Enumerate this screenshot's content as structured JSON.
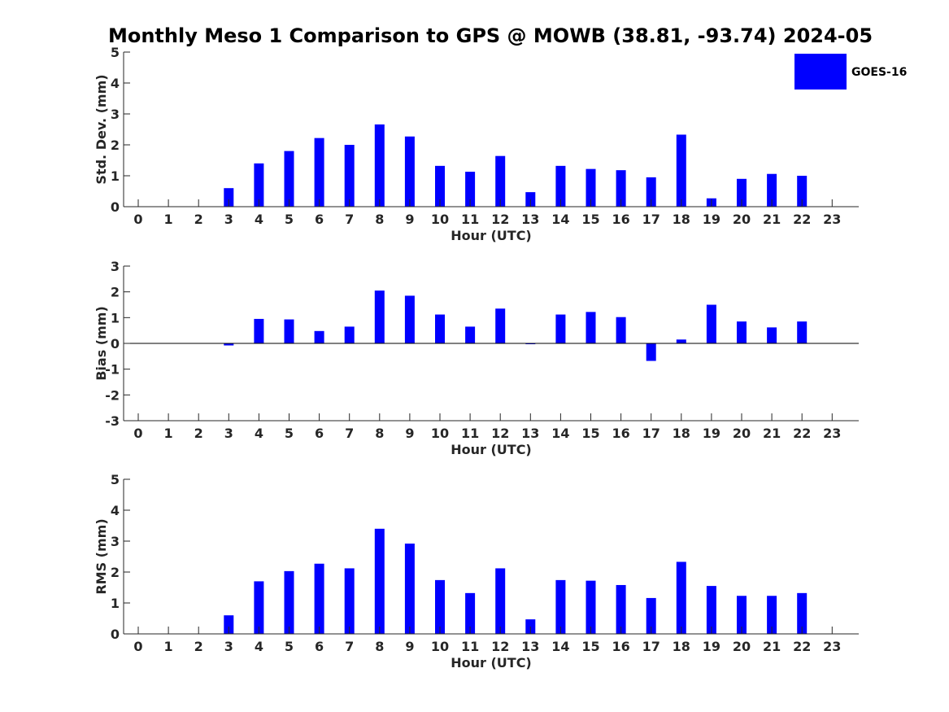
{
  "chart_data": {
    "title": "Monthly Meso 1 Comparison to GPS @ MOWB (38.81, -93.74) 2024-05",
    "type": "bar",
    "categories": [
      0,
      1,
      2,
      3,
      4,
      5,
      6,
      7,
      8,
      9,
      10,
      11,
      12,
      13,
      14,
      15,
      16,
      17,
      18,
      19,
      20,
      21,
      22,
      23
    ],
    "legend": {
      "entries": [
        "GOES-16"
      ],
      "position": "top-right"
    },
    "colors": {
      "bar": "#0000ff",
      "axis": "#262626",
      "title": "#000000"
    },
    "grid": false,
    "panels": [
      {
        "ylabel": "Std. Dev. (mm)",
        "xlabel": "Hour (UTC)",
        "ylim": [
          0,
          5
        ],
        "yticks": [
          0,
          1,
          2,
          3,
          4,
          5
        ],
        "series": [
          {
            "name": "GOES-16",
            "values": [
              null,
              null,
              null,
              0.6,
              1.4,
              1.8,
              2.22,
              2.0,
              2.66,
              2.27,
              1.32,
              1.13,
              1.64,
              0.47,
              1.32,
              1.22,
              1.18,
              0.95,
              2.33,
              0.27,
              0.9,
              1.06,
              1.0,
              null
            ]
          }
        ]
      },
      {
        "ylabel": "Bias (mm)",
        "xlabel": "Hour (UTC)",
        "ylim": [
          -3,
          3
        ],
        "yticks": [
          -3,
          -2,
          -1,
          0,
          1,
          2,
          3
        ],
        "series": [
          {
            "name": "GOES-16",
            "values": [
              null,
              null,
              null,
              -0.08,
              0.95,
              0.93,
              0.48,
              0.65,
              2.05,
              1.85,
              1.12,
              0.65,
              1.35,
              0.0,
              1.12,
              1.22,
              1.02,
              -0.68,
              0.15,
              1.5,
              0.85,
              0.62,
              0.85,
              null
            ]
          }
        ]
      },
      {
        "ylabel": "RMS (mm)",
        "xlabel": "Hour (UTC)",
        "ylim": [
          0,
          5
        ],
        "yticks": [
          0,
          1,
          2,
          3,
          4,
          5
        ],
        "series": [
          {
            "name": "GOES-16",
            "values": [
              null,
              null,
              null,
              0.6,
              1.7,
              2.03,
              2.27,
              2.12,
              3.4,
              2.92,
              1.74,
              1.32,
              2.12,
              0.47,
              1.74,
              1.72,
              1.58,
              1.16,
              2.33,
              1.55,
              1.23,
              1.23,
              1.32,
              null
            ]
          }
        ]
      }
    ]
  }
}
